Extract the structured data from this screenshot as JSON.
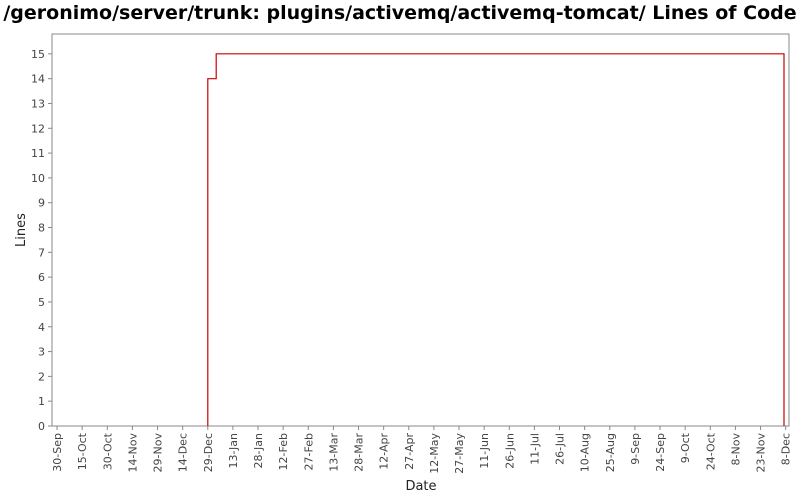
{
  "chart_data": {
    "type": "line",
    "title": "/geronimo/server/trunk: plugins/activemq/activemq-tomcat/ Lines of Code",
    "xlabel": "Date",
    "ylabel": "Lines",
    "ylim": [
      0,
      15.8
    ],
    "y_ticks": [
      0,
      1,
      2,
      3,
      4,
      5,
      6,
      7,
      8,
      9,
      10,
      11,
      12,
      13,
      14,
      15
    ],
    "x_ticks": [
      "30-Sep",
      "15-Oct",
      "30-Oct",
      "14-Nov",
      "29-Nov",
      "14-Dec",
      "29-Dec",
      "13-Jan",
      "28-Jan",
      "12-Feb",
      "27-Feb",
      "13-Mar",
      "28-Mar",
      "12-Apr",
      "27-Apr",
      "12-May",
      "27-May",
      "11-Jun",
      "26-Jun",
      "11-Jul",
      "26-Jul",
      "10-Aug",
      "25-Aug",
      "9-Sep",
      "24-Sep",
      "9-Oct",
      "24-Oct",
      "8-Nov",
      "23-Nov",
      "8-Dec"
    ],
    "x_day_span": [
      -3,
      437
    ],
    "grid": false,
    "series": [
      {
        "color": "#cc0000",
        "points": [
          {
            "day": 90,
            "value": 0
          },
          {
            "day": 90,
            "value": 14
          },
          {
            "day": 95,
            "value": 14
          },
          {
            "day": 95,
            "value": 15
          },
          {
            "day": 434,
            "value": 15
          },
          {
            "day": 434,
            "value": 0
          }
        ]
      }
    ]
  }
}
